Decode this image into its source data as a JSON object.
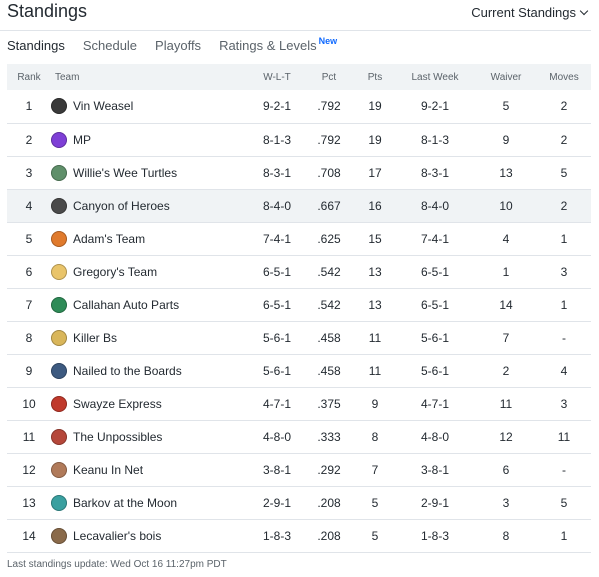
{
  "header": {
    "title": "Standings",
    "view_select": "Current Standings"
  },
  "tabs": [
    {
      "label": "Standings",
      "active": true
    },
    {
      "label": "Schedule"
    },
    {
      "label": "Playoffs"
    },
    {
      "label": "Ratings & Levels",
      "badge": "New"
    }
  ],
  "columns": {
    "rank": "Rank",
    "team": "Team",
    "wlt": "W-L-T",
    "pct": "Pct",
    "pts": "Pts",
    "last_week": "Last Week",
    "waiver": "Waiver",
    "moves": "Moves"
  },
  "rows": [
    {
      "rank": "1",
      "team": "Vin Weasel",
      "wlt": "9-2-1",
      "pct": ".792",
      "pts": "19",
      "last_week": "9-2-1",
      "waiver": "5",
      "moves": "2",
      "avatar_color": "#3a3a3a",
      "avatar_icon": "weasel-avatar-icon"
    },
    {
      "rank": "2",
      "team": "MP",
      "wlt": "8-1-3",
      "pct": ".792",
      "pts": "19",
      "last_week": "8-1-3",
      "waiver": "9",
      "moves": "2",
      "avatar_color": "#7e3fd6",
      "avatar_icon": "mp-avatar-icon"
    },
    {
      "rank": "3",
      "team": "Willie's Wee Turtles",
      "wlt": "8-3-1",
      "pct": ".708",
      "pts": "17",
      "last_week": "8-3-1",
      "waiver": "13",
      "moves": "5",
      "avatar_color": "#5f8f6a",
      "avatar_icon": "turtles-avatar-icon"
    },
    {
      "rank": "4",
      "team": "Canyon of Heroes",
      "wlt": "8-4-0",
      "pct": ".667",
      "pts": "16",
      "last_week": "8-4-0",
      "waiver": "10",
      "moves": "2",
      "avatar_color": "#4a4a4a",
      "avatar_icon": "heroes-avatar-icon",
      "highlight": true
    },
    {
      "rank": "5",
      "team": "Adam's Team",
      "wlt": "7-4-1",
      "pct": ".625",
      "pts": "15",
      "last_week": "7-4-1",
      "waiver": "4",
      "moves": "1",
      "avatar_color": "#e07a2c",
      "avatar_icon": "adams-avatar-icon"
    },
    {
      "rank": "6",
      "team": "Gregory's Team",
      "wlt": "6-5-1",
      "pct": ".542",
      "pts": "13",
      "last_week": "6-5-1",
      "waiver": "1",
      "moves": "3",
      "avatar_color": "#e9c46a",
      "avatar_icon": "gregorys-avatar-icon"
    },
    {
      "rank": "7",
      "team": "Callahan Auto Parts",
      "wlt": "6-5-1",
      "pct": ".542",
      "pts": "13",
      "last_week": "6-5-1",
      "waiver": "14",
      "moves": "1",
      "avatar_color": "#2e8b57",
      "avatar_icon": "callahan-avatar-icon"
    },
    {
      "rank": "8",
      "team": "Killer Bs",
      "wlt": "5-6-1",
      "pct": ".458",
      "pts": "11",
      "last_week": "5-6-1",
      "waiver": "7",
      "moves": "-",
      "avatar_color": "#d9b65a",
      "avatar_icon": "killer-bs-avatar-icon"
    },
    {
      "rank": "9",
      "team": "Nailed to the Boards",
      "wlt": "5-6-1",
      "pct": ".458",
      "pts": "11",
      "last_week": "5-6-1",
      "waiver": "2",
      "moves": "4",
      "avatar_color": "#3d5a80",
      "avatar_icon": "boards-avatar-icon"
    },
    {
      "rank": "10",
      "team": "Swayze Express",
      "wlt": "4-7-1",
      "pct": ".375",
      "pts": "9",
      "last_week": "4-7-1",
      "waiver": "11",
      "moves": "3",
      "avatar_color": "#c0392b",
      "avatar_icon": "swayze-avatar-icon"
    },
    {
      "rank": "11",
      "team": "The Unpossibles",
      "wlt": "4-8-0",
      "pct": ".333",
      "pts": "8",
      "last_week": "4-8-0",
      "waiver": "12",
      "moves": "11",
      "avatar_color": "#b5473a",
      "avatar_icon": "unpossibles-avatar-icon"
    },
    {
      "rank": "12",
      "team": "Keanu In Net",
      "wlt": "3-8-1",
      "pct": ".292",
      "pts": "7",
      "last_week": "3-8-1",
      "waiver": "6",
      "moves": "-",
      "avatar_color": "#b07a5a",
      "avatar_icon": "keanu-avatar-icon"
    },
    {
      "rank": "13",
      "team": "Barkov at the Moon",
      "wlt": "2-9-1",
      "pct": ".208",
      "pts": "5",
      "last_week": "2-9-1",
      "waiver": "3",
      "moves": "5",
      "avatar_color": "#3aa0a0",
      "avatar_icon": "barkov-avatar-icon"
    },
    {
      "rank": "14",
      "team": "Lecavalier's bois",
      "wlt": "1-8-3",
      "pct": ".208",
      "pts": "5",
      "last_week": "1-8-3",
      "waiver": "8",
      "moves": "1",
      "avatar_color": "#8a6a4a",
      "avatar_icon": "lecavalier-avatar-icon"
    }
  ],
  "footer": "Last standings update: Wed Oct 16 11:27pm PDT"
}
